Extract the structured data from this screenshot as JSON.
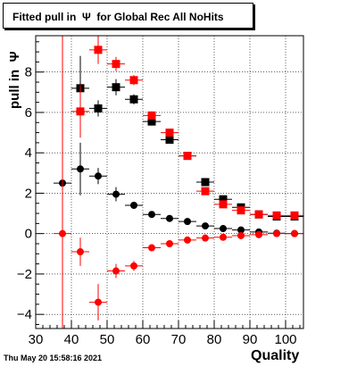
{
  "title": "Fitted pull in  Ψ  for Global Rec All NoHits",
  "xlabel": "Quality",
  "ylabel": "pull in  Ψ",
  "timestamp": "Thu May 20 15:58:16 2021",
  "colors": {
    "black_series": "#000000",
    "red_series": "#ff0000"
  },
  "chart_data": {
    "type": "scatter",
    "title": "Fitted pull in  Ψ  for Global Rec All NoHits",
    "xlabel": "Quality",
    "ylabel": "pull in  Ψ",
    "xlim": [
      30,
      105
    ],
    "ylim": [
      -4.7,
      9.8
    ],
    "grid": true,
    "x_ticks": [
      30,
      40,
      50,
      60,
      70,
      80,
      90,
      100
    ],
    "y_ticks": [
      -4,
      -2,
      0,
      2,
      4,
      6,
      8
    ],
    "series": [
      {
        "marker": "square",
        "color": "#000000",
        "points": [
          {
            "x": 42.5,
            "y": 7.2,
            "yerr": 1.6
          },
          {
            "x": 47.5,
            "y": 6.2,
            "yerr": 0.4
          },
          {
            "x": 52.5,
            "y": 7.25,
            "yerr": 0.4
          },
          {
            "x": 57.5,
            "y": 6.65,
            "yerr": 0.25
          },
          {
            "x": 62.5,
            "y": 5.55,
            "yerr": 0.2
          },
          {
            "x": 67.5,
            "y": 4.65,
            "yerr": 0.15
          },
          {
            "x": 72.5,
            "y": 3.85,
            "yerr": 0.12
          },
          {
            "x": 77.5,
            "y": 2.55,
            "yerr": 0.1
          },
          {
            "x": 82.5,
            "y": 1.7,
            "yerr": 0.08
          },
          {
            "x": 87.5,
            "y": 1.3,
            "yerr": 0.06
          },
          {
            "x": 92.5,
            "y": 0.95,
            "yerr": 0.05
          },
          {
            "x": 97.5,
            "y": 0.85,
            "yerr": 0.04
          },
          {
            "x": 102.5,
            "y": 0.85,
            "yerr": 0.04
          }
        ]
      },
      {
        "marker": "square",
        "color": "#ff0000",
        "points": [
          {
            "x": 42.5,
            "y": 6.05,
            "yerr": 1.3
          },
          {
            "x": 47.5,
            "y": 9.1,
            "yerr": 0.7
          },
          {
            "x": 52.5,
            "y": 8.4,
            "yerr": 0.35
          },
          {
            "x": 57.5,
            "y": 7.6,
            "yerr": 0.25
          },
          {
            "x": 62.5,
            "y": 5.85,
            "yerr": 0.2
          },
          {
            "x": 67.5,
            "y": 5.0,
            "yerr": 0.15
          },
          {
            "x": 72.5,
            "y": 3.85,
            "yerr": 0.12
          },
          {
            "x": 77.5,
            "y": 2.1,
            "yerr": 0.1
          },
          {
            "x": 82.5,
            "y": 1.45,
            "yerr": 0.08
          },
          {
            "x": 87.5,
            "y": 1.15,
            "yerr": 0.06
          },
          {
            "x": 92.5,
            "y": 0.95,
            "yerr": 0.05
          },
          {
            "x": 97.5,
            "y": 0.9,
            "yerr": 0.04
          },
          {
            "x": 102.5,
            "y": 0.9,
            "yerr": 0.04
          }
        ]
      },
      {
        "marker": "circle",
        "color": "#000000",
        "points": [
          {
            "x": 37.5,
            "y": 2.5,
            "yerr": 10
          },
          {
            "x": 42.5,
            "y": 3.2,
            "yerr": 1.3
          },
          {
            "x": 47.5,
            "y": 2.85,
            "yerr": 0.4
          },
          {
            "x": 52.5,
            "y": 1.95,
            "yerr": 0.35
          },
          {
            "x": 57.5,
            "y": 1.4,
            "yerr": 0.15
          },
          {
            "x": 62.5,
            "y": 0.95,
            "yerr": 0.1
          },
          {
            "x": 67.5,
            "y": 0.75,
            "yerr": 0.08
          },
          {
            "x": 72.5,
            "y": 0.6,
            "yerr": 0.06
          },
          {
            "x": 77.5,
            "y": 0.38,
            "yerr": 0.05
          },
          {
            "x": 82.5,
            "y": 0.25,
            "yerr": 0.04
          },
          {
            "x": 87.5,
            "y": 0.18,
            "yerr": 0.04
          },
          {
            "x": 92.5,
            "y": 0.08,
            "yerr": 0.03
          },
          {
            "x": 97.5,
            "y": 0.02,
            "yerr": 0.03
          },
          {
            "x": 102.5,
            "y": 0.0,
            "yerr": 0.03
          }
        ]
      },
      {
        "marker": "circle",
        "color": "#ff0000",
        "points": [
          {
            "x": 37.5,
            "y": 0.0,
            "yerr": 10
          },
          {
            "x": 42.5,
            "y": -0.9,
            "yerr": 0.7
          },
          {
            "x": 47.5,
            "y": -3.4,
            "yerr": 0.9
          },
          {
            "x": 52.5,
            "y": -1.85,
            "yerr": 0.35
          },
          {
            "x": 57.5,
            "y": -1.6,
            "yerr": 0.25
          },
          {
            "x": 62.5,
            "y": -0.7,
            "yerr": 0.12
          },
          {
            "x": 67.5,
            "y": -0.5,
            "yerr": 0.1
          },
          {
            "x": 72.5,
            "y": -0.32,
            "yerr": 0.08
          },
          {
            "x": 77.5,
            "y": -0.22,
            "yerr": 0.06
          },
          {
            "x": 82.5,
            "y": -0.18,
            "yerr": 0.05
          },
          {
            "x": 87.5,
            "y": -0.1,
            "yerr": 0.04
          },
          {
            "x": 92.5,
            "y": -0.05,
            "yerr": 0.04
          },
          {
            "x": 97.5,
            "y": 0.0,
            "yerr": 0.03
          },
          {
            "x": 102.5,
            "y": 0.0,
            "yerr": 0.03
          }
        ]
      }
    ]
  }
}
